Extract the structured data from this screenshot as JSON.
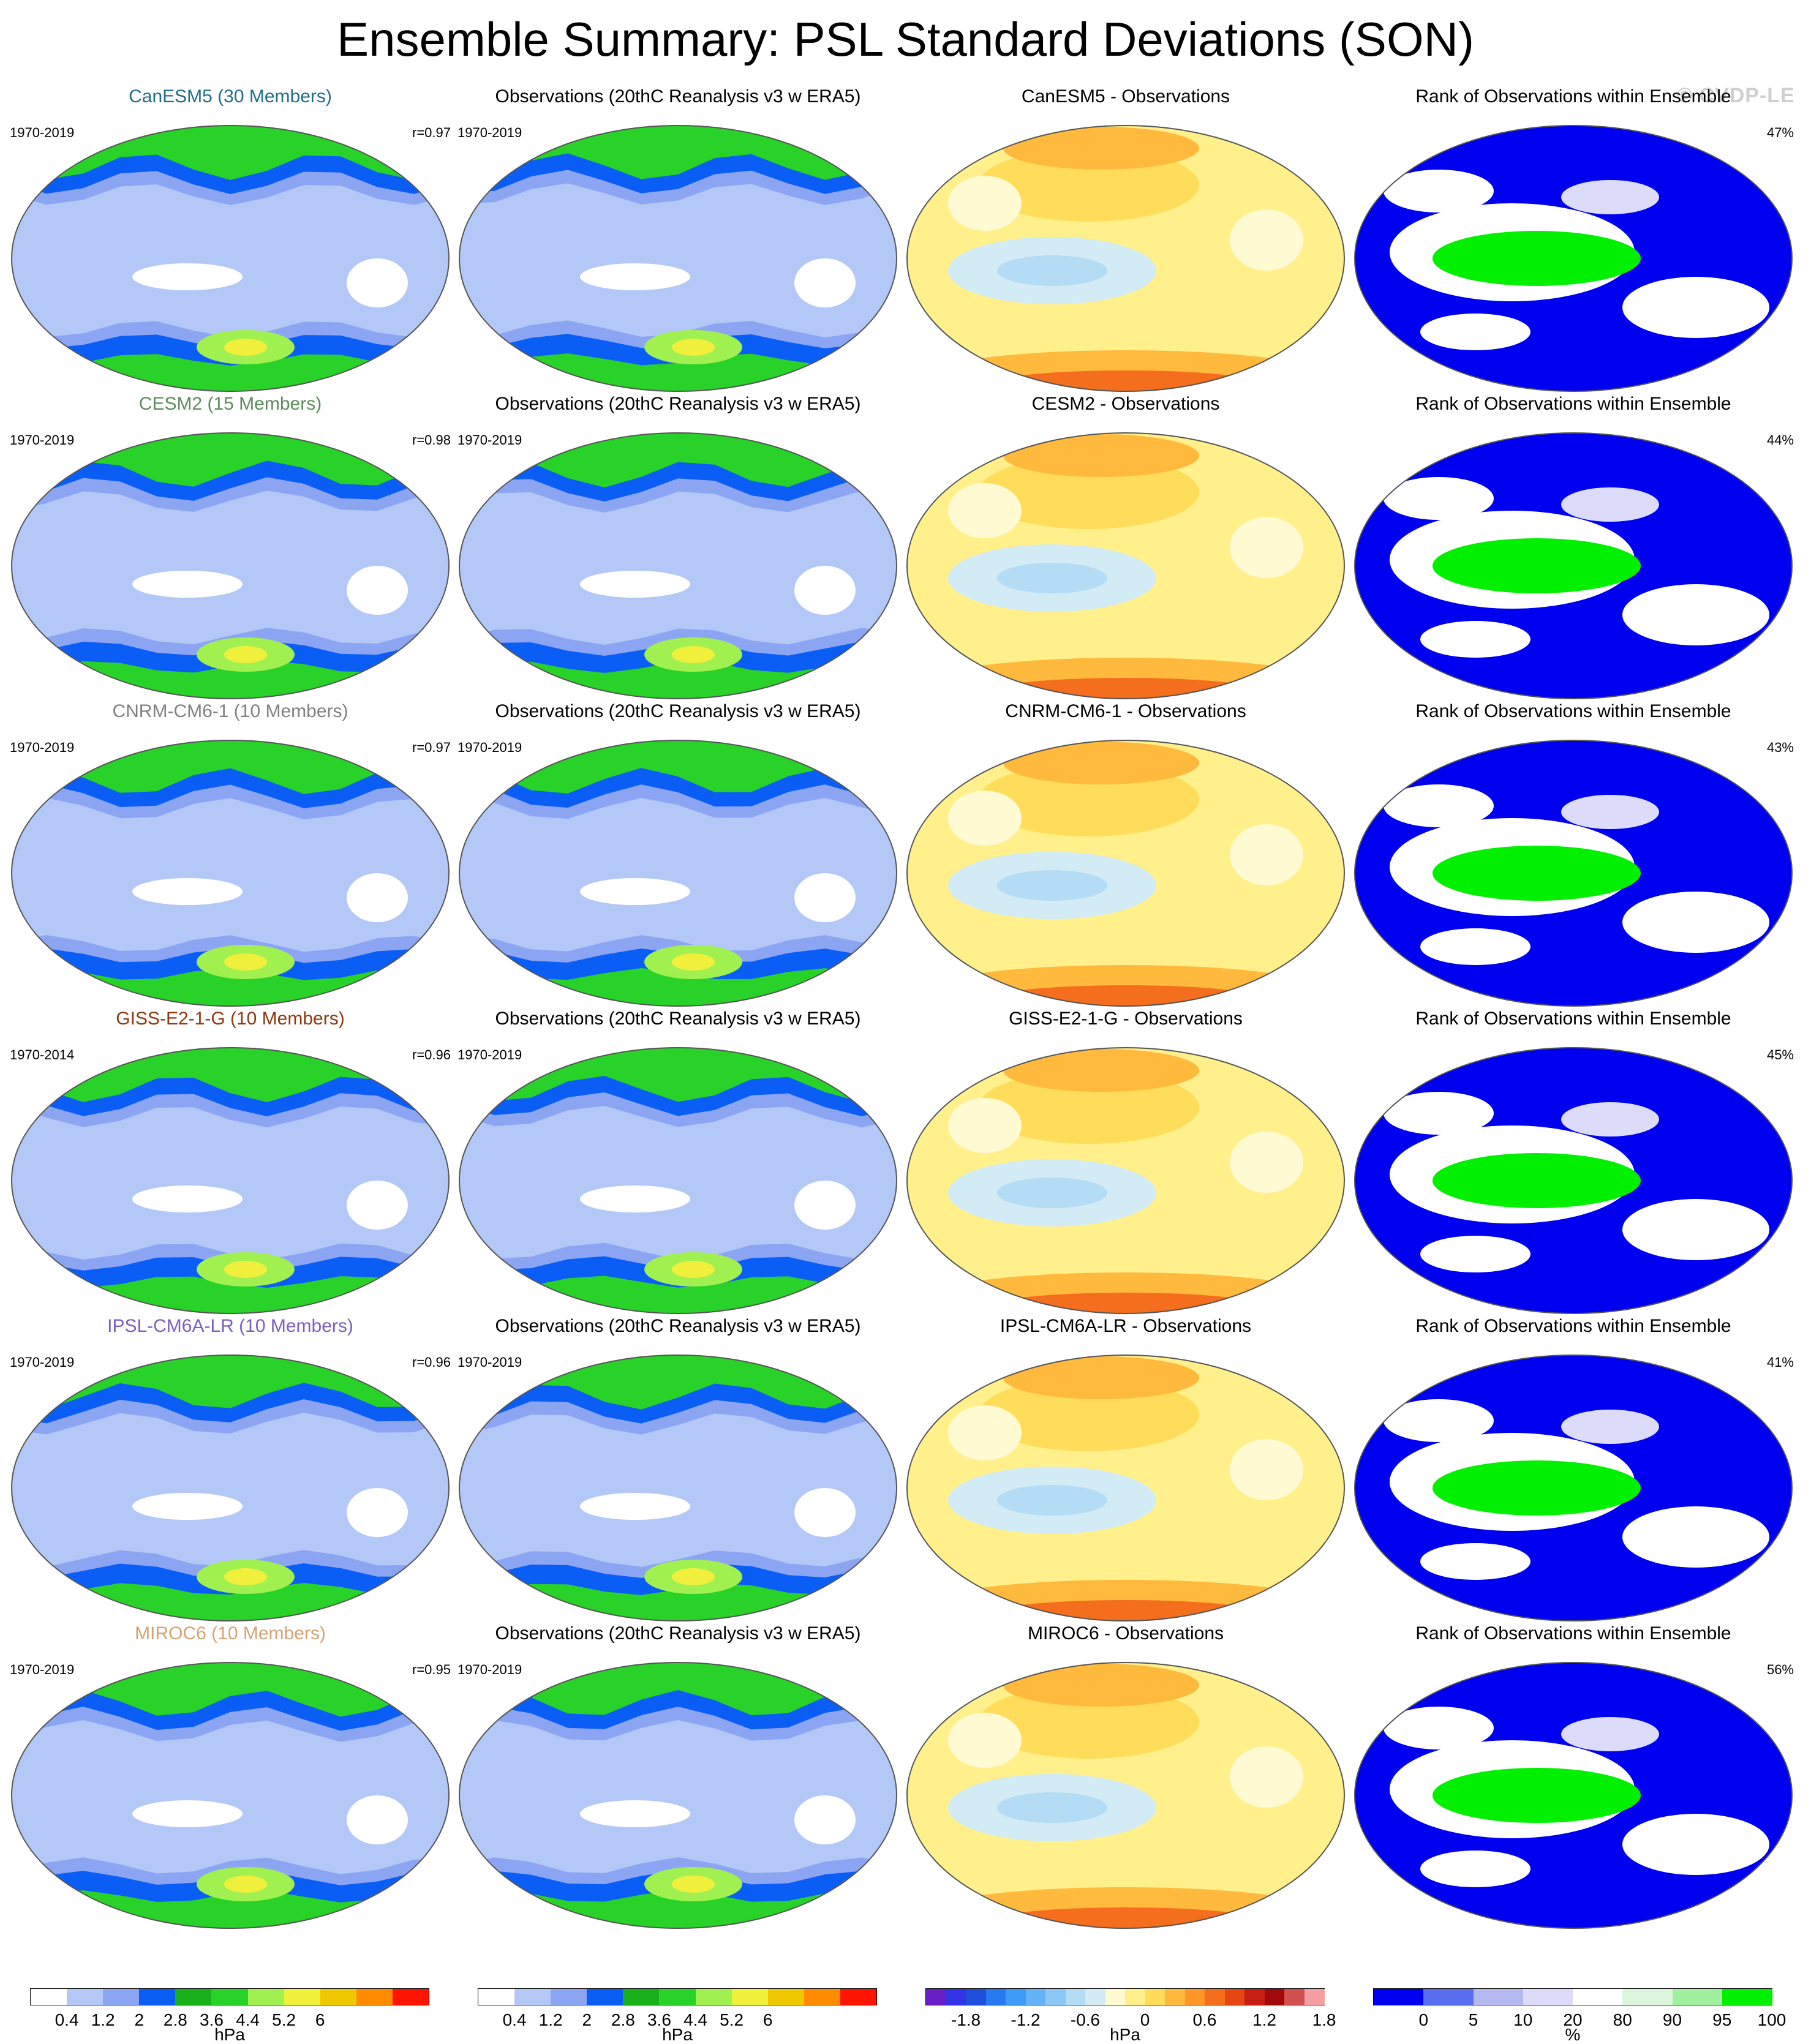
{
  "title": "Ensemble Summary: PSL Standard Deviations (SON)",
  "watermark": "© CVDP-LE",
  "rows": [
    {
      "model_title": "CanESM5 (30 Members)",
      "model_color": "#1f6e87",
      "model_years": "1970-2019",
      "corr": "r=0.97",
      "obs_title": "Observations (20thC Reanalysis v3 w ERA5)",
      "obs_years": "1970-2019",
      "diff_title": "CanESM5 - Observations",
      "rank_title": "Rank of Observations within Ensemble",
      "rank_pct": "47%"
    },
    {
      "model_title": "CESM2 (15 Members)",
      "model_color": "#5c8c5c",
      "model_years": "1970-2019",
      "corr": "r=0.98",
      "obs_title": "Observations (20thC Reanalysis v3 w ERA5)",
      "obs_years": "1970-2019",
      "diff_title": "CESM2 - Observations",
      "rank_title": "Rank of Observations within Ensemble",
      "rank_pct": "44%"
    },
    {
      "model_title": "CNRM-CM6-1 (10 Members)",
      "model_color": "#808080",
      "model_years": "1970-2019",
      "corr": "r=0.97",
      "obs_title": "Observations (20thC Reanalysis v3 w ERA5)",
      "obs_years": "1970-2019",
      "diff_title": "CNRM-CM6-1 - Observations",
      "rank_title": "Rank of Observations within Ensemble",
      "rank_pct": "43%"
    },
    {
      "model_title": "GISS-E2-1-G (10 Members)",
      "model_color": "#8b3a10",
      "model_years": "1970-2014",
      "corr": "r=0.96",
      "obs_title": "Observations (20thC Reanalysis v3 w ERA5)",
      "obs_years": "1970-2019",
      "diff_title": "GISS-E2-1-G - Observations",
      "rank_title": "Rank of Observations within Ensemble",
      "rank_pct": "45%"
    },
    {
      "model_title": "IPSL-CM6A-LR (10 Members)",
      "model_color": "#7a5fc0",
      "model_years": "1970-2019",
      "corr": "r=0.96",
      "obs_title": "Observations (20thC Reanalysis v3 w ERA5)",
      "obs_years": "1970-2019",
      "diff_title": "IPSL-CM6A-LR - Observations",
      "rank_title": "Rank of Observations within Ensemble",
      "rank_pct": "41%"
    },
    {
      "model_title": "MIROC6 (10 Members)",
      "model_color": "#d4a373",
      "model_years": "1970-2019",
      "corr": "r=0.95",
      "obs_title": "Observations (20thC Reanalysis v3 w ERA5)",
      "obs_years": "1970-2019",
      "diff_title": "MIROC6 - Observations",
      "rank_title": "Rank of Observations within Ensemble",
      "rank_pct": "56%"
    }
  ],
  "colorbars": [
    {
      "colors": [
        "#ffffff",
        "#b4c8f8",
        "#8ca5f3",
        "#0a5ef5",
        "#19b019",
        "#28d228",
        "#a0f050",
        "#f0f03c",
        "#f0c800",
        "#ff8c00",
        "#ff1400"
      ],
      "ticks": [
        "0.4",
        "1.2",
        "2",
        "2.8",
        "3.6",
        "4.4",
        "5.2",
        "6"
      ],
      "unit": "hPa"
    },
    {
      "colors": [
        "#ffffff",
        "#b4c8f8",
        "#8ca5f3",
        "#0a5ef5",
        "#19b019",
        "#28d228",
        "#a0f050",
        "#f0f03c",
        "#f0c800",
        "#ff8c00",
        "#ff1400"
      ],
      "ticks": [
        "0.4",
        "1.2",
        "2",
        "2.8",
        "3.6",
        "4.4",
        "5.2",
        "6"
      ],
      "unit": "hPa"
    },
    {
      "colors": [
        "#6a1ec8",
        "#3232e6",
        "#1e50dc",
        "#2878f0",
        "#3c9bf5",
        "#64b4f5",
        "#8cc8f5",
        "#b4dcf5",
        "#d2ebf5",
        "#fffad2",
        "#fff08c",
        "#ffdc5a",
        "#ffb93c",
        "#ff9628",
        "#f56e1e",
        "#e64614",
        "#c81e14",
        "#a00a0a",
        "#d25050",
        "#f5a0a0"
      ],
      "ticks": [
        "-1.8",
        "-1.2",
        "-0.6",
        "0",
        "0.6",
        "1.2",
        "1.8"
      ],
      "unit": "hPa"
    },
    {
      "colors": [
        "#0000f0",
        "#5a6ef0",
        "#b4b9f0",
        "#dcdcfa",
        "#ffffff",
        "#dcf5dc",
        "#a0f0a0",
        "#00f000"
      ],
      "ticks": [
        "0",
        "5",
        "10",
        "20",
        "80",
        "90",
        "95",
        "100"
      ],
      "unit": "%"
    }
  ]
}
